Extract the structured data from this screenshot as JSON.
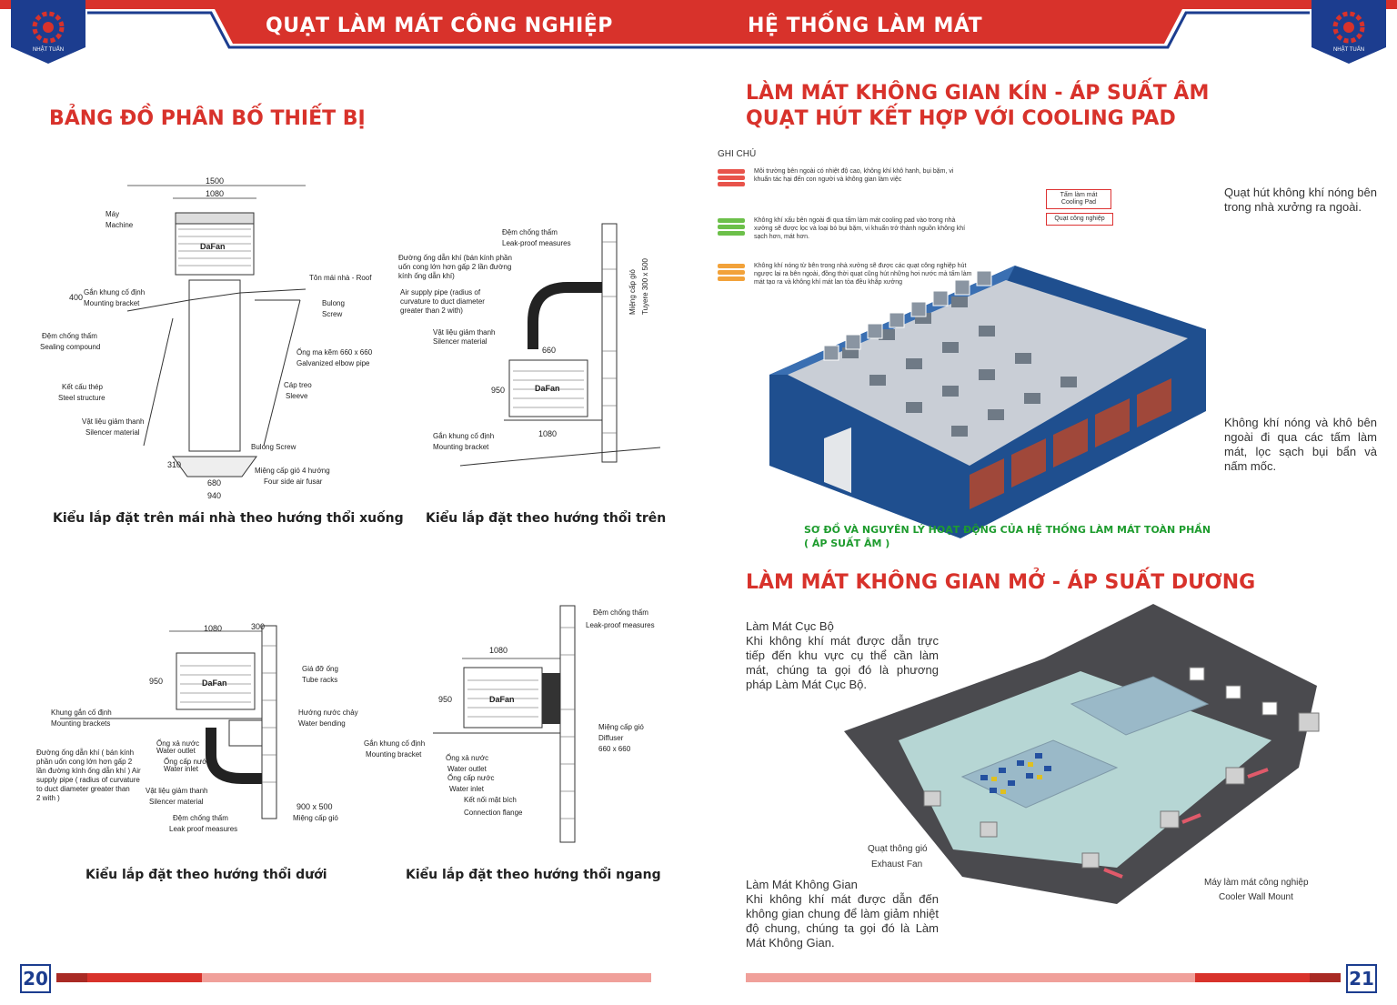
{
  "header": {
    "left_title": "QUẠT LÀM MÁT CÔNG NGHIỆP",
    "right_title": "HỆ THỐNG LÀM MÁT",
    "logo_text": "NHẬT TUẤN",
    "colors": {
      "red": "#d8322b",
      "blue": "#1c3d8f"
    }
  },
  "left_page": {
    "title": "BẢNG ĐỒ PHÂN BỐ THIẾT BỊ",
    "captions": [
      "Kiểu lắp đặt trên mái nhà theo hướng thổi xuống",
      "Kiểu lắp đặt theo hướng thổi trên",
      "Kiểu lắp đặt theo hướng thổi dưới",
      "Kiểu lắp đặt theo hướng thổi ngang"
    ],
    "diagram1": {
      "dims": [
        "1500",
        "1080",
        "400",
        "310",
        "680",
        "940"
      ],
      "brand": "DaFan",
      "labels": [
        "Máy",
        "Machine",
        "Tôn mái nhà - Roof",
        "Gắn khung cố định",
        "Mounting bracket",
        "Bulong",
        "Screw",
        "Đệm chống thấm",
        "Sealing compound",
        "Ống ma kẽm 660 x 660",
        "Galvanized elbow pipe",
        "Kết cấu thép",
        "Steel structure",
        "Cáp treo",
        "Sleeve",
        "Vật liệu giảm thanh",
        "Silencer material",
        "Bulong Screw",
        "Miệng cấp gió 4 hướng",
        "Four side air fusar"
      ]
    },
    "diagram2": {
      "dims": [
        "660",
        "950",
        "1080"
      ],
      "brand": "DaFan",
      "labels": [
        "Đệm chống thấm",
        "Leak-proof measures",
        "Đường ống dẫn khí (bán kính phần",
        "uốn cong lớn hơn gấp 2 lần đường",
        "kính ống dẫn khí)",
        "Air supply pipe (radius of",
        "curvature to duct diameter",
        "greater than 2 with)",
        "Vật liệu giảm thanh",
        "Silencer material",
        "Miệng cấp gió",
        "Tuyere 300 x 500",
        "Gắn khung cố định",
        "Mounting bracket"
      ]
    },
    "diagram3": {
      "dims": [
        "1080",
        "300",
        "950",
        "900 x 500"
      ],
      "brand": "DaFan",
      "labels": [
        "Giá đỡ ống",
        "Tube racks",
        "Khung gắn cố định",
        "Mounting brackets",
        "Hướng nước chảy",
        "Water bending",
        "Ống xả nước",
        "Water outlet",
        "Ống cấp nước",
        "Water inlet",
        "Đường ống dẫn khí ( bán kính",
        "phần uốn cong lớn hơn gấp 2",
        "lần đường kính ống dẫn khí ) Air",
        "supply pipe ( radius of curvature",
        "to duct diameter greater than",
        "2 with )",
        "Vật liệu giảm thanh",
        "Silencer material",
        "Đệm chống thấm",
        "Leak proof measures",
        "Miệng cấp gió"
      ]
    },
    "diagram4": {
      "dims": [
        "1080",
        "950"
      ],
      "brand": "DaFan",
      "labels": [
        "Đệm chống thấm",
        "Leak-proof measures",
        "Miệng cấp gió",
        "Diffuser",
        "660 x 660",
        "Gắn khung cố định",
        "Mounting bracket",
        "Ống xả nước",
        "Water outlet",
        "Ống cấp nước",
        "Water inlet",
        "Kết nối mặt bích",
        "Connection flange"
      ]
    }
  },
  "right_page": {
    "title_line1": "LÀM MÁT KHÔNG GIAN KÍN - ÁP SUẤT ÂM",
    "title_line2": "QUẠT HÚT KẾT HỢP VỚI COOLING PAD",
    "ghichu": "GHI CHÚ",
    "legend": [
      {
        "color": "#e8534b",
        "text": "Môi trường bên ngoài có nhiệt độ cao, không khí khô hanh, bụi bặm, vi khuẩn tác hại đến con người và không gian làm việc"
      },
      {
        "color": "#6cc04a",
        "text": "Không khí xấu bên ngoài đi qua tấm làm mát cooling pad vào trong nhà xưởng sẽ được lọc và loại bỏ bụi bặm, vi khuẩn trở thành nguồn không khí sạch hơn, mát hơn."
      },
      {
        "color": "#f2a23a",
        "text": "Không khí nóng từ bên trong nhà xưởng sẽ được các quạt công nghiệp hút ngược lại ra bên ngoài, đồng thời quạt cũng hút những hơi nước mà tấm làm mát tạo ra và không khí mát lan tỏa đều khắp xưởng"
      }
    ],
    "callouts": [
      "Tấm làm mát",
      "Cooling Pad",
      "Quạt công nghiệp"
    ],
    "note1": "Quạt hút không khí nóng bên trong nhà xưởng ra ngoài.",
    "note2": "Không khí nóng và khô bên ngoài đi qua các tấm làm mát, lọc sạch bụi bẩn và nấm mốc.",
    "green_caption_1": "SƠ ĐỒ VÀ NGUYÊN LÝ HOẠT ĐỘNG CỦA HỆ THỐNG LÀM MÁT TOÀN PHẦN",
    "green_caption_2": "( ÁP SUẤT ÂM )",
    "title2": "LÀM MÁT KHÔNG GIAN MỞ - ÁP SUẤT DƯƠNG",
    "local_heading": "Làm Mát Cục Bộ",
    "local_text": "Khi không khí mát được dẫn trực tiếp đến khu vực cụ thể cần làm mát, chúng ta gọi đó là phương pháp Làm Mát Cục Bộ.",
    "space_heading": "Làm Mát Không Gian",
    "space_text": "Khi không khí mát được dẫn đến không gian chung để làm giảm nhiệt độ chung, chúng ta gọi đó là Làm Mát Không Gian.",
    "exhaust_vi": "Quạt thông gió",
    "exhaust_en": "Exhaust Fan",
    "cooler_vi": "Máy làm mát công nghiệp",
    "cooler_en": "Cooler Wall Mount"
  },
  "footer": {
    "left_page": "20",
    "right_page": "21"
  }
}
